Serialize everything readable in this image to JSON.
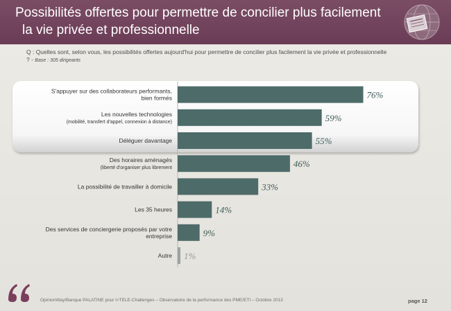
{
  "header": {
    "title_line1": "Possibilités  offertes pour permettre de concilier plus facilement",
    "title_line2": "la vie privée et professionnelle"
  },
  "question": {
    "text": "Q : Quelles sont, selon vous, les possibilités  offertes aujourd'hui pour permettre de concilier plus facilement la vie privée et professionnelle ? -",
    "base": "Base : 305 dirigeants"
  },
  "chart_data": {
    "type": "bar",
    "orientation": "horizontal",
    "categories": [
      [
        "S'appuyer sur des collaborateurs performants,",
        "bien formés"
      ],
      [
        "Les nouvelles technologies",
        "(mobilité,  transfert d'appel, connexion à distance)"
      ],
      [
        "Déléguer davantage"
      ],
      [
        "Des horaires aménagés",
        "(liberté d'organiser plus librement"
      ],
      [
        "La possibilité de travailler à domicile"
      ],
      [
        "Les 35 heures"
      ],
      [
        "Des services  de conciergerie proposés par votre",
        "entreprise"
      ],
      [
        "Autre"
      ]
    ],
    "values": [
      76,
      59,
      55,
      46,
      33,
      14,
      9,
      1
    ],
    "value_labels": [
      "76%",
      "59%",
      "55%",
      "46%",
      "33%",
      "14%",
      "9%",
      "1%"
    ],
    "xlim": [
      0,
      100
    ],
    "colors": {
      "bar": "#4d6b69",
      "bar_muted": "#9aa3a3",
      "label": "#3d5a57",
      "label_muted": "#9a9a9a"
    },
    "highlighted_rows": 3
  },
  "footer": {
    "text": "OpinionWay/Banque PALATINE pour i>TELE-Challenges – Observatoire de la performance des PME/ETI – Octobre 2013",
    "page": "page 12"
  },
  "colors": {
    "header": "#6f4059",
    "accent": "#7a3f5c"
  }
}
